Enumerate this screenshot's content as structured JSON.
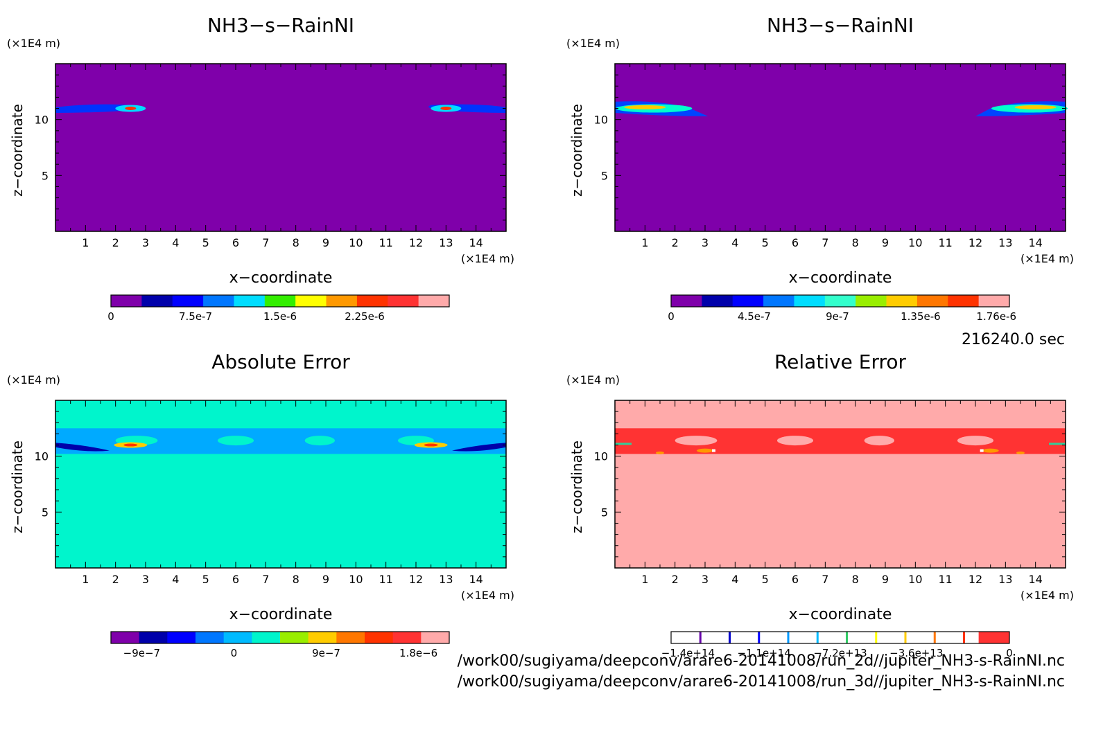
{
  "footer": {
    "time_label": "216240.0 sec",
    "path_1": "/work00/sugiyama/deepconv/arare6-20141008/run_2d//jupiter_NH3-s-RainNI.nc",
    "path_2": "/work00/sugiyama/deepconv/arare6-20141008/run_3d//jupiter_NH3-s-RainNI.nc"
  },
  "chart_data": [
    {
      "type": "heatmap",
      "title": "NH3−s−RainNI",
      "xlabel": "x−coordinate",
      "ylabel": "z−coordinate",
      "x_unit": "(×1E4 m)",
      "y_unit": "(×1E4 m)",
      "xlim": [
        0,
        15
      ],
      "ylim": [
        0,
        15
      ],
      "x_ticks": [
        1,
        2,
        3,
        4,
        5,
        6,
        7,
        8,
        9,
        10,
        11,
        12,
        13,
        14
      ],
      "y_ticks": [
        5,
        10
      ],
      "background_color": "#7f00aa",
      "features": [
        {
          "x": 2.5,
          "z": 11.0,
          "note": "cloud blob"
        },
        {
          "x": 13.0,
          "z": 11.0,
          "note": "cloud blob"
        }
      ],
      "colorbar": {
        "colors": [
          "#7f00aa",
          "#0000aa",
          "#0000ff",
          "#0077ff",
          "#00ddff",
          "#33ee00",
          "#ffff00",
          "#ff9900",
          "#ff3300",
          "#ff3333",
          "#ffaaaa"
        ],
        "tick_labels": [
          "0",
          "7.5e-7",
          "1.5e-6",
          "2.25e-6"
        ],
        "tick_values": [
          0,
          7.5e-07,
          1.5e-06,
          2.25e-06
        ]
      }
    },
    {
      "type": "heatmap",
      "title": "NH3−s−RainNI",
      "xlabel": "x−coordinate",
      "ylabel": "z−coordinate",
      "x_unit": "(×1E4 m)",
      "y_unit": "(×1E4 m)",
      "xlim": [
        0,
        15
      ],
      "ylim": [
        0,
        15
      ],
      "x_ticks": [
        1,
        2,
        3,
        4,
        5,
        6,
        7,
        8,
        9,
        10,
        11,
        12,
        13,
        14
      ],
      "y_ticks": [
        5,
        10
      ],
      "background_color": "#7f00aa",
      "features": [
        {
          "x": 1.5,
          "z": 11.0,
          "note": "cloud layer"
        },
        {
          "x": 13.5,
          "z": 11.0,
          "note": "cloud layer"
        }
      ],
      "colorbar": {
        "colors": [
          "#7f00aa",
          "#0000aa",
          "#0000ff",
          "#0077ff",
          "#00ddff",
          "#33ffcc",
          "#99ee00",
          "#ffcc00",
          "#ff7700",
          "#ff3300",
          "#ffaaaa"
        ],
        "tick_labels": [
          "0",
          "4.5e-7",
          "9e-7",
          "1.35e-6",
          "1.76e-6"
        ],
        "tick_values": [
          0,
          4.5e-07,
          9e-07,
          1.35e-06,
          1.76e-06
        ]
      }
    },
    {
      "type": "heatmap",
      "title": "Absolute Error",
      "xlabel": "x−coordinate",
      "ylabel": "z−coordinate",
      "x_unit": "(×1E4 m)",
      "y_unit": "(×1E4 m)",
      "xlim": [
        0,
        15
      ],
      "ylim": [
        0,
        15
      ],
      "x_ticks": [
        1,
        2,
        3,
        4,
        5,
        6,
        7,
        8,
        9,
        10,
        11,
        12,
        13,
        14
      ],
      "y_ticks": [
        5,
        10
      ],
      "background_color": "#00f5cc",
      "features": [
        {
          "x": 2.5,
          "z": 11.0,
          "note": "error peak"
        },
        {
          "x": 12.5,
          "z": 11.0,
          "note": "error peak"
        }
      ],
      "colorbar": {
        "colors": [
          "#7f00aa",
          "#0000aa",
          "#0000ff",
          "#0077ff",
          "#00bbff",
          "#00f5cc",
          "#99ee00",
          "#ffcc00",
          "#ff7700",
          "#ff3300",
          "#ff3333",
          "#ffaaaa"
        ],
        "tick_labels": [
          "−9e−7",
          "0",
          "9e−7",
          "1.8e−6"
        ],
        "tick_values": [
          -9e-07,
          0,
          9e-07,
          1.8e-06
        ]
      }
    },
    {
      "type": "heatmap",
      "title": "Relative Error",
      "xlabel": "x−coordinate",
      "ylabel": "z−coordinate",
      "x_unit": "(×1E4 m)",
      "y_unit": "(×1E4 m)",
      "xlim": [
        0,
        15
      ],
      "ylim": [
        0,
        15
      ],
      "x_ticks": [
        1,
        2,
        3,
        4,
        5,
        6,
        7,
        8,
        9,
        10,
        11,
        12,
        13,
        14
      ],
      "y_ticks": [
        5,
        10
      ],
      "background_color": "#ffaaaa",
      "features": [
        {
          "x": 3.0,
          "z": 10.5,
          "note": "error spot"
        },
        {
          "x": 12.5,
          "z": 10.5,
          "note": "error spot"
        }
      ],
      "colorbar": {
        "colors": [
          "#ffffff",
          "#ffffff",
          "#ffffff",
          "#ffffff",
          "#ffffff",
          "#ffffff",
          "#ffffff",
          "#ffffff",
          "#ffffff",
          "#ffffff",
          "#ff3333"
        ],
        "line_colors": [
          "#6600aa",
          "#0000cc",
          "#0000ff",
          "#0099ff",
          "#00bbff",
          "#33cc66",
          "#ffff00",
          "#ffcc00",
          "#ff7700",
          "#ff3300"
        ],
        "tick_labels": [
          "−1.4e+14",
          "−1.1e+14",
          "−7.2e+13",
          "−3.6e+13",
          "0"
        ],
        "tick_values": [
          -140000000000000.0,
          -110000000000000.0,
          -72000000000000.0,
          -36000000000000.0,
          0
        ]
      }
    }
  ]
}
